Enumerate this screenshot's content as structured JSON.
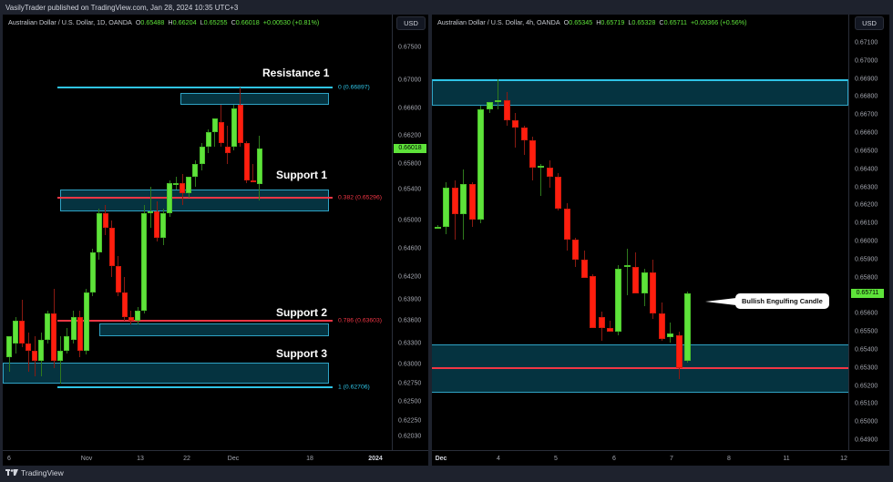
{
  "header": {
    "published": "VasilyTrader published on TradingView.com, Jan 28, 2024 10:35 UTC+3"
  },
  "footer": {
    "brand": "TradingView"
  },
  "colors": {
    "up": "#5ee33a",
    "down": "#ff1e0e",
    "zone_fill": "#063c4b",
    "zone_border": "#2fa3c5",
    "fib_blue": "#2fc4e6",
    "fib_red": "#f23645",
    "bg": "#000000",
    "frame": "#1e222d"
  },
  "left": {
    "symbol": "Australian Dollar / U.S. Dollar, 1D, OANDA",
    "ohlc": {
      "o_label": "O",
      "o": "0.65488",
      "h_label": "H",
      "h": "0.66204",
      "l_label": "L",
      "l": "0.65255",
      "c_label": "C",
      "c": "0.66018",
      "change": "+0.00530 (+0.81%)"
    },
    "currency": "USD",
    "last_price": "0.66018",
    "price_ticks": [
      "0.67500",
      "0.67000",
      "0.66600",
      "0.66200",
      "0.65800",
      "0.65400",
      "0.65000",
      "0.64600",
      "0.64200",
      "0.63900",
      "0.63600",
      "0.63300",
      "0.63000",
      "0.62750",
      "0.62500",
      "0.62250",
      "0.62030"
    ],
    "time_ticks": [
      "6",
      "Nov",
      "13",
      "22",
      "Dec",
      "18",
      "2024"
    ],
    "zones": [
      {
        "label": "Resistance 1"
      },
      {
        "label": "Support 1"
      },
      {
        "label": "Support 2"
      },
      {
        "label": "Support 3"
      }
    ],
    "fib_levels": [
      {
        "text": "0 (0.66897)",
        "color": "#2fc4e6"
      },
      {
        "text": "0.382 (0.65296)",
        "color": "#f23645"
      },
      {
        "text": "0.786 (0.63603)",
        "color": "#f23645"
      },
      {
        "text": "1 (0.62706)",
        "color": "#2fc4e6"
      }
    ]
  },
  "right": {
    "symbol": "Australian Dollar / U.S. Dollar, 4h, OANDA",
    "ohlc": {
      "o_label": "O",
      "o": "0.65345",
      "h_label": "H",
      "h": "0.65719",
      "l_label": "L",
      "l": "0.65328",
      "c_label": "C",
      "c": "0.65711",
      "change": "+0.00366 (+0.56%)"
    },
    "currency": "USD",
    "last_price": "0.65711",
    "price_ticks": [
      "0.67100",
      "0.67000",
      "0.66900",
      "0.66800",
      "0.66700",
      "0.66600",
      "0.66500",
      "0.66400",
      "0.66300",
      "0.66200",
      "0.66100",
      "0.66000",
      "0.65900",
      "0.65800",
      "0.65600",
      "0.65500",
      "0.65400",
      "0.65300",
      "0.65200",
      "0.65100",
      "0.65000",
      "0.64900"
    ],
    "time_ticks": [
      "Dec",
      "4",
      "5",
      "6",
      "7",
      "8",
      "11",
      "12"
    ],
    "annotation": "Bullish Engulfing Candle"
  },
  "chart_data": [
    {
      "type": "candlestick",
      "title": "Australian Dollar / U.S. Dollar, 1D, OANDA",
      "xlabel": "",
      "ylabel": "USD",
      "ylim": [
        0.6203,
        0.676
      ],
      "x_ticks": [
        "6",
        "Nov",
        "13",
        "22",
        "Dec",
        "18",
        "2024"
      ],
      "last": {
        "open": 0.65488,
        "high": 0.66204,
        "low": 0.65255,
        "close": 0.66018,
        "change": 0.0053,
        "change_pct": 0.81
      },
      "zones": [
        {
          "name": "Resistance 1",
          "from": 0.6665,
          "to": 0.6682
        },
        {
          "name": "Support 1",
          "from": 0.6512,
          "to": 0.654
        },
        {
          "name": "Support 2",
          "from": 0.634,
          "to": 0.6357
        },
        {
          "name": "Support 3",
          "from": 0.6275,
          "to": 0.6302
        }
      ],
      "fibonacci": [
        {
          "level": 0,
          "price": 0.66897
        },
        {
          "level": 0.382,
          "price": 0.65296
        },
        {
          "level": 0.786,
          "price": 0.63603
        },
        {
          "level": 1,
          "price": 0.62706
        }
      ],
      "candles": [
        {
          "o": 0.631,
          "h": 0.634,
          "l": 0.629,
          "c": 0.634
        },
        {
          "o": 0.633,
          "h": 0.6365,
          "l": 0.6315,
          "c": 0.636
        },
        {
          "o": 0.636,
          "h": 0.639,
          "l": 0.6325,
          "c": 0.633
        },
        {
          "o": 0.633,
          "h": 0.6345,
          "l": 0.629,
          "c": 0.632
        },
        {
          "o": 0.632,
          "h": 0.634,
          "l": 0.6285,
          "c": 0.6305
        },
        {
          "o": 0.6305,
          "h": 0.6345,
          "l": 0.6285,
          "c": 0.6335
        },
        {
          "o": 0.6335,
          "h": 0.6375,
          "l": 0.633,
          "c": 0.637
        },
        {
          "o": 0.637,
          "h": 0.6405,
          "l": 0.6295,
          "c": 0.6305
        },
        {
          "o": 0.6305,
          "h": 0.634,
          "l": 0.6275,
          "c": 0.632
        },
        {
          "o": 0.632,
          "h": 0.635,
          "l": 0.6315,
          "c": 0.634
        },
        {
          "o": 0.6335,
          "h": 0.6375,
          "l": 0.633,
          "c": 0.6365
        },
        {
          "o": 0.6365,
          "h": 0.6375,
          "l": 0.631,
          "c": 0.632
        },
        {
          "o": 0.632,
          "h": 0.6405,
          "l": 0.6315,
          "c": 0.64
        },
        {
          "o": 0.64,
          "h": 0.646,
          "l": 0.6395,
          "c": 0.6455
        },
        {
          "o": 0.6455,
          "h": 0.6515,
          "l": 0.6445,
          "c": 0.651
        },
        {
          "o": 0.651,
          "h": 0.652,
          "l": 0.648,
          "c": 0.649
        },
        {
          "o": 0.649,
          "h": 0.65,
          "l": 0.642,
          "c": 0.6435
        },
        {
          "o": 0.6435,
          "h": 0.645,
          "l": 0.6395,
          "c": 0.64
        },
        {
          "o": 0.64,
          "h": 0.642,
          "l": 0.636,
          "c": 0.6365
        },
        {
          "o": 0.6365,
          "h": 0.6375,
          "l": 0.6355,
          "c": 0.636
        },
        {
          "o": 0.636,
          "h": 0.638,
          "l": 0.6355,
          "c": 0.6375
        },
        {
          "o": 0.6375,
          "h": 0.652,
          "l": 0.637,
          "c": 0.651
        },
        {
          "o": 0.6512,
          "h": 0.6545,
          "l": 0.649,
          "c": 0.6512
        },
        {
          "o": 0.6512,
          "h": 0.6525,
          "l": 0.647,
          "c": 0.6475
        },
        {
          "o": 0.6475,
          "h": 0.6515,
          "l": 0.6465,
          "c": 0.651
        },
        {
          "o": 0.651,
          "h": 0.6555,
          "l": 0.6505,
          "c": 0.655
        },
        {
          "o": 0.655,
          "h": 0.656,
          "l": 0.654,
          "c": 0.655
        },
        {
          "o": 0.655,
          "h": 0.6565,
          "l": 0.652,
          "c": 0.6535
        },
        {
          "o": 0.6535,
          "h": 0.656,
          "l": 0.653,
          "c": 0.656
        },
        {
          "o": 0.656,
          "h": 0.6585,
          "l": 0.6545,
          "c": 0.658
        },
        {
          "o": 0.658,
          "h": 0.661,
          "l": 0.657,
          "c": 0.6605
        },
        {
          "o": 0.6605,
          "h": 0.663,
          "l": 0.6595,
          "c": 0.6625
        },
        {
          "o": 0.6625,
          "h": 0.6645,
          "l": 0.6605,
          "c": 0.6645
        },
        {
          "o": 0.664,
          "h": 0.6665,
          "l": 0.6605,
          "c": 0.661
        },
        {
          "o": 0.6605,
          "h": 0.6635,
          "l": 0.658,
          "c": 0.6595
        },
        {
          "o": 0.6605,
          "h": 0.6665,
          "l": 0.66,
          "c": 0.666
        },
        {
          "o": 0.6665,
          "h": 0.669,
          "l": 0.6605,
          "c": 0.661
        },
        {
          "o": 0.661,
          "h": 0.6612,
          "l": 0.655,
          "c": 0.6555
        },
        {
          "o": 0.6555,
          "h": 0.658,
          "l": 0.6553,
          "c": 0.6553
        },
        {
          "o": 0.6549,
          "h": 0.662,
          "l": 0.6526,
          "c": 0.6602
        }
      ]
    },
    {
      "type": "candlestick",
      "title": "Australian Dollar / U.S. Dollar, 4h, OANDA",
      "xlabel": "",
      "ylabel": "USD",
      "ylim": [
        0.6485,
        0.6715
      ],
      "x_ticks": [
        "Dec",
        "4",
        "5",
        "6",
        "7",
        "8",
        "11",
        "12"
      ],
      "last": {
        "open": 0.65345,
        "high": 0.65719,
        "low": 0.65328,
        "close": 0.65711,
        "change": 0.00366,
        "change_pct": 0.56
      },
      "zones": [
        {
          "name": "Resistance",
          "from": 0.6675,
          "to": 0.669
        },
        {
          "name": "Support",
          "from": 0.6516,
          "to": 0.6543
        }
      ],
      "levels": [
        {
          "price": 0.653,
          "color": "#f23645"
        }
      ],
      "annotation": {
        "text": "Bullish Engulfing Candle",
        "target_index": 17
      },
      "candles": [
        {
          "o": 0.6608,
          "h": 0.6609,
          "l": 0.6607,
          "c": 0.6608
        },
        {
          "o": 0.6608,
          "h": 0.6633,
          "l": 0.6604,
          "c": 0.663
        },
        {
          "o": 0.663,
          "h": 0.6634,
          "l": 0.6601,
          "c": 0.6615
        },
        {
          "o": 0.6615,
          "h": 0.664,
          "l": 0.6601,
          "c": 0.6632
        },
        {
          "o": 0.6632,
          "h": 0.6633,
          "l": 0.6608,
          "c": 0.6612
        },
        {
          "o": 0.6612,
          "h": 0.6675,
          "l": 0.661,
          "c": 0.6673
        },
        {
          "o": 0.6673,
          "h": 0.6677,
          "l": 0.6671,
          "c": 0.6677
        },
        {
          "o": 0.6677,
          "h": 0.669,
          "l": 0.6673,
          "c": 0.6678
        },
        {
          "o": 0.6678,
          "h": 0.6683,
          "l": 0.6664,
          "c": 0.6667
        },
        {
          "o": 0.6667,
          "h": 0.6671,
          "l": 0.6652,
          "c": 0.6663
        },
        {
          "o": 0.6663,
          "h": 0.6664,
          "l": 0.6648,
          "c": 0.6656
        },
        {
          "o": 0.6656,
          "h": 0.6658,
          "l": 0.6634,
          "c": 0.6641
        },
        {
          "o": 0.6641,
          "h": 0.6643,
          "l": 0.6625,
          "c": 0.6642
        },
        {
          "o": 0.6641,
          "h": 0.6645,
          "l": 0.663,
          "c": 0.6636
        },
        {
          "o": 0.6636,
          "h": 0.6638,
          "l": 0.6617,
          "c": 0.6618
        },
        {
          "o": 0.6618,
          "h": 0.6621,
          "l": 0.6595,
          "c": 0.6601
        },
        {
          "o": 0.6601,
          "h": 0.6602,
          "l": 0.6586,
          "c": 0.659
        },
        {
          "o": 0.659,
          "h": 0.6595,
          "l": 0.6581,
          "c": 0.658
        },
        {
          "o": 0.6581,
          "h": 0.6582,
          "l": 0.6552,
          "c": 0.6552
        },
        {
          "o": 0.6558,
          "h": 0.6561,
          "l": 0.6545,
          "c": 0.6552
        },
        {
          "o": 0.6552,
          "h": 0.6556,
          "l": 0.655,
          "c": 0.655
        },
        {
          "o": 0.655,
          "h": 0.6587,
          "l": 0.6548,
          "c": 0.6585
        },
        {
          "o": 0.6586,
          "h": 0.6596,
          "l": 0.657,
          "c": 0.6587
        },
        {
          "o": 0.6586,
          "h": 0.6594,
          "l": 0.6576,
          "c": 0.6571
        },
        {
          "o": 0.6571,
          "h": 0.6585,
          "l": 0.6564,
          "c": 0.6583
        },
        {
          "o": 0.6583,
          "h": 0.659,
          "l": 0.6557,
          "c": 0.656
        },
        {
          "o": 0.656,
          "h": 0.6566,
          "l": 0.6545,
          "c": 0.6546
        },
        {
          "o": 0.6547,
          "h": 0.6555,
          "l": 0.6544,
          "c": 0.6549
        },
        {
          "o": 0.6548,
          "h": 0.655,
          "l": 0.6524,
          "c": 0.653
        },
        {
          "o": 0.6534,
          "h": 0.6572,
          "l": 0.6533,
          "c": 0.6571
        }
      ]
    }
  ]
}
